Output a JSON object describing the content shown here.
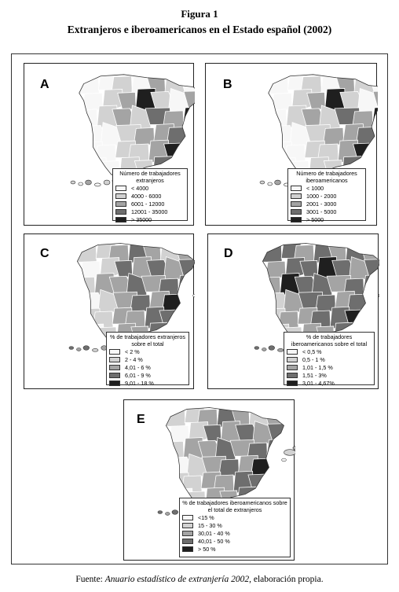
{
  "figure": {
    "number": "Figura 1",
    "title": "Extranjeros e iberoamericanos en el Estado español (2002)"
  },
  "colors": {
    "c0": "#f7f7f7",
    "c1": "#d2d2d2",
    "c2": "#a4a4a4",
    "c3": "#6e6e6e",
    "c4": "#1f1f1f"
  },
  "panels": [
    {
      "letter": "A",
      "legend_title": "Número de trabajadores extranjeros",
      "classes": [
        "< 4000",
        "4000 - 6000",
        "6001 - 12000",
        "12001 - 35000",
        "> 35000"
      ],
      "tone": "light"
    },
    {
      "letter": "B",
      "legend_title": "Número de trabajadores iberoamericanos",
      "classes": [
        "< 1000",
        "1000 - 2000",
        "2001 - 3000",
        "3001 - 5000",
        "> 5000"
      ],
      "tone": "light"
    },
    {
      "letter": "C",
      "legend_title": "% de trabajadores extranjeros sobre el total",
      "classes": [
        "< 2 %",
        "2 - 4 %",
        "4,01 - 6 %",
        "6,01 - 9 %",
        "9,01 - 18 %"
      ],
      "tone": "mid"
    },
    {
      "letter": "D",
      "legend_title": "% de trabajadores iberoamericanos sobre el total",
      "classes": [
        "< 0,5 %",
        "0,5 - 1 %",
        "1,01 - 1,5 %",
        "1,51 - 3%",
        "3,01 - 4,67%"
      ],
      "tone": "dark"
    },
    {
      "letter": "E",
      "legend_title": "% de trabajadores iberoamericanos sobre el total de extranjeros",
      "classes": [
        "<15 %",
        "15 - 30 %",
        "30,01 - 40 %",
        "40,01 - 50 %",
        "> 50 %"
      ],
      "tone": "mid"
    }
  ],
  "source": {
    "prefix": "Fuente: ",
    "work": "Anuario estadístico de extranjería 2002",
    "suffix": ", elaboración propia."
  }
}
